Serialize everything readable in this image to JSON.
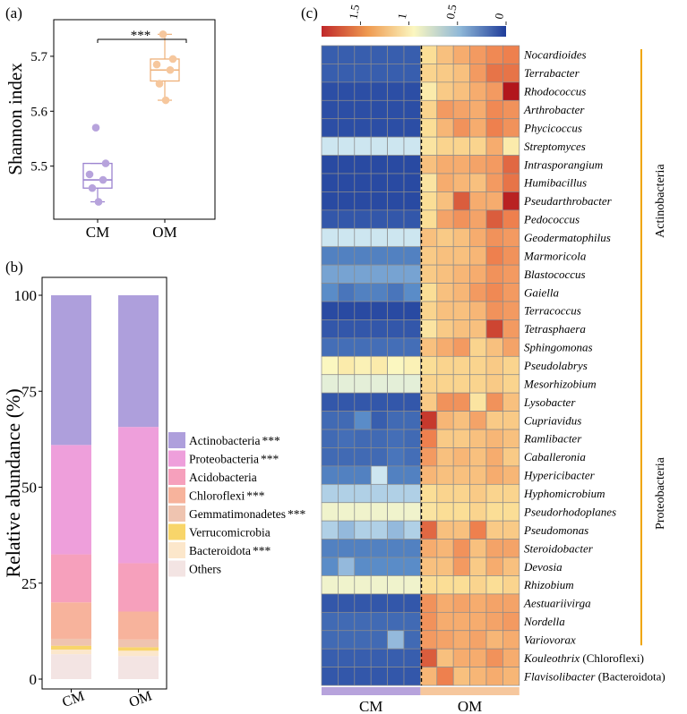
{
  "panel_labels": {
    "a": "(a)",
    "b": "(b)",
    "c": "(c)"
  },
  "colors": {
    "cm_fill": "#b7a3dc",
    "cm_edge": "#9b83cf",
    "om_fill": "#f6c79d",
    "om_edge": "#eeb079",
    "annot_line": "#f0a500",
    "heat_low": "#c0282a",
    "heat_mid": "#fbf7c0",
    "heat_high": "#1f3c9a"
  },
  "chart_data": [
    {
      "id": "a",
      "type": "box",
      "ylabel": "Shannon index",
      "categories": [
        "CM",
        "OM"
      ],
      "yticks": [
        5.5,
        5.6,
        5.7
      ],
      "ylim": [
        5.405,
        5.765
      ],
      "groups": [
        {
          "name": "CM",
          "q1": 5.46,
          "median": 5.475,
          "q3": 5.505,
          "whisker_low": 5.435,
          "whisker_high": 5.505,
          "points": [
            5.57,
            5.505,
            5.485,
            5.475,
            5.46,
            5.435
          ]
        },
        {
          "name": "OM",
          "q1": 5.655,
          "median": 5.675,
          "q3": 5.695,
          "whisker_low": 5.62,
          "whisker_high": 5.74,
          "points": [
            5.74,
            5.695,
            5.685,
            5.675,
            5.65,
            5.62
          ]
        }
      ],
      "significance": "***"
    },
    {
      "id": "b",
      "type": "stacked_bar",
      "ylabel": "Relative abundance (%)",
      "categories": [
        "CM",
        "OM"
      ],
      "yticks": [
        0,
        25,
        50,
        75,
        100
      ],
      "ylim": [
        0,
        100
      ],
      "series": [
        {
          "name": "Others",
          "sig": "",
          "color": "#f3e4e3",
          "values": [
            6.5,
            6.0
          ]
        },
        {
          "name": "Bacteroidota",
          "sig": "***",
          "color": "#fce7cb",
          "values": [
            1.2,
            1.4
          ]
        },
        {
          "name": "Verrucomicrobia",
          "sig": "",
          "color": "#f8d56a",
          "values": [
            1.0,
            0.9
          ]
        },
        {
          "name": "Gemmatimonadetes",
          "sig": "***",
          "color": "#efc4b0",
          "values": [
            1.8,
            2.0
          ]
        },
        {
          "name": "Chloroflexi",
          "sig": "***",
          "color": "#f7b39c",
          "values": [
            9.5,
            7.3
          ]
        },
        {
          "name": "Acidobacteria",
          "sig": "",
          "color": "#f6a0bc",
          "values": [
            12.5,
            12.6
          ]
        },
        {
          "name": "Proteobacteria",
          "sig": "***",
          "color": "#ee9fdb",
          "values": [
            28.5,
            35.5
          ]
        },
        {
          "name": "Actinobacteria",
          "sig": "***",
          "color": "#ae9fdc",
          "values": [
            39.0,
            34.3
          ]
        }
      ]
    },
    {
      "id": "c",
      "type": "heatmap",
      "colorbar_ticks": [
        "1.5",
        "1",
        "0.5",
        "0"
      ],
      "colorbar_values": [
        1.5,
        1.0,
        0.5,
        0.0
      ],
      "value_range": [
        0,
        1.9
      ],
      "groups": [
        "CM",
        "OM"
      ],
      "rows": [
        {
          "genus": "Nocardioides",
          "suffix": "",
          "values": [
            0.15,
            0.15,
            0.15,
            0.15,
            0.15,
            0.15,
            0.95,
            1.1,
            1.2,
            1.3,
            1.4,
            1.45
          ]
        },
        {
          "genus": "Terrabacter",
          "suffix": "",
          "values": [
            0.15,
            0.15,
            0.15,
            0.15,
            0.15,
            0.15,
            1.0,
            1.05,
            1.1,
            1.3,
            1.5,
            1.5
          ]
        },
        {
          "genus": "Rhodococcus",
          "suffix": "",
          "values": [
            0.08,
            0.08,
            0.08,
            0.08,
            0.08,
            0.08,
            0.85,
            1.05,
            1.1,
            1.2,
            1.3,
            1.9
          ]
        },
        {
          "genus": "Arthrobacter",
          "suffix": "",
          "values": [
            0.08,
            0.08,
            0.08,
            0.08,
            0.08,
            0.08,
            1.0,
            1.3,
            1.25,
            1.2,
            1.4,
            1.35
          ]
        },
        {
          "genus": "Phycicoccus",
          "suffix": "",
          "values": [
            0.08,
            0.08,
            0.08,
            0.08,
            0.08,
            0.08,
            0.95,
            1.15,
            1.35,
            1.2,
            1.45,
            1.35
          ]
        },
        {
          "genus": "Streptomyces",
          "suffix": "",
          "values": [
            0.55,
            0.55,
            0.55,
            0.55,
            0.55,
            0.55,
            0.9,
            1.0,
            1.0,
            1.0,
            1.2,
            0.85
          ]
        },
        {
          "genus": "Intrasporangium",
          "suffix": "",
          "values": [
            0.06,
            0.06,
            0.06,
            0.06,
            0.06,
            0.06,
            1.1,
            1.2,
            1.2,
            1.25,
            1.3,
            1.55
          ]
        },
        {
          "genus": "Humibacillus",
          "suffix": "",
          "values": [
            0.06,
            0.06,
            0.06,
            0.06,
            0.06,
            0.06,
            0.9,
            1.2,
            1.15,
            1.1,
            1.3,
            1.5
          ]
        },
        {
          "genus": "Pseudarthrobacter",
          "suffix": "",
          "values": [
            0.06,
            0.06,
            0.06,
            0.06,
            0.06,
            0.06,
            0.95,
            1.1,
            1.6,
            1.2,
            1.2,
            1.85
          ]
        },
        {
          "genus": "Pedococcus",
          "suffix": "",
          "values": [
            0.12,
            0.12,
            0.12,
            0.12,
            0.12,
            0.12,
            0.95,
            1.25,
            1.35,
            1.25,
            1.6,
            1.45
          ]
        },
        {
          "genus": "Geodermatophilus",
          "suffix": "",
          "values": [
            0.55,
            0.55,
            0.55,
            0.55,
            0.55,
            0.55,
            1.1,
            1.05,
            1.1,
            1.2,
            1.35,
            1.3
          ]
        },
        {
          "genus": "Marmoricola",
          "suffix": "",
          "values": [
            0.3,
            0.3,
            0.3,
            0.3,
            0.3,
            0.3,
            1.05,
            1.1,
            1.1,
            1.15,
            1.45,
            1.35
          ]
        },
        {
          "genus": "Blastococcus",
          "suffix": "",
          "values": [
            0.4,
            0.4,
            0.4,
            0.4,
            0.4,
            0.4,
            1.05,
            1.1,
            1.15,
            1.2,
            1.35,
            1.3
          ]
        },
        {
          "genus": "Gaiella",
          "suffix": "",
          "values": [
            0.35,
            0.25,
            0.3,
            0.3,
            0.25,
            0.35,
            0.95,
            1.1,
            1.15,
            1.3,
            1.4,
            1.3
          ]
        },
        {
          "genus": "Terracoccus",
          "suffix": "",
          "values": [
            0.06,
            0.06,
            0.06,
            0.06,
            0.06,
            0.06,
            1.0,
            1.1,
            1.1,
            1.15,
            1.35,
            1.3
          ]
        },
        {
          "genus": "Tetrasphaera",
          "suffix": "",
          "values": [
            0.12,
            0.12,
            0.12,
            0.12,
            0.12,
            0.12,
            0.9,
            1.05,
            1.1,
            1.1,
            1.7,
            1.3
          ]
        },
        {
          "genus": "Sphingomonas",
          "suffix": "",
          "values": [
            0.22,
            0.22,
            0.22,
            0.22,
            0.22,
            0.22,
            1.1,
            1.2,
            1.3,
            1.0,
            1.1,
            1.25
          ]
        },
        {
          "genus": "Pseudolabrys",
          "suffix": "",
          "values": [
            0.75,
            0.85,
            0.8,
            0.85,
            0.75,
            0.8,
            0.95,
            1.0,
            1.0,
            1.0,
            1.05,
            1.0
          ]
        },
        {
          "genus": "Mesorhizobium",
          "suffix": "",
          "values": [
            0.65,
            0.65,
            0.65,
            0.65,
            0.65,
            0.65,
            1.0,
            1.0,
            1.0,
            1.0,
            1.05,
            1.0
          ]
        },
        {
          "genus": "Lysobacter",
          "suffix": "",
          "values": [
            0.12,
            0.12,
            0.12,
            0.12,
            0.12,
            0.12,
            1.05,
            1.35,
            1.35,
            0.9,
            1.35,
            1.1
          ]
        },
        {
          "genus": "Cupriavidus",
          "suffix": "",
          "values": [
            0.2,
            0.2,
            0.35,
            0.15,
            0.2,
            0.2,
            1.75,
            1.15,
            1.1,
            1.25,
            1.05,
            1.05
          ]
        },
        {
          "genus": "Ramlibacter",
          "suffix": "",
          "values": [
            0.2,
            0.22,
            0.2,
            0.2,
            0.22,
            0.2,
            1.45,
            1.05,
            1.05,
            1.1,
            1.15,
            1.1
          ]
        },
        {
          "genus": "Caballeronia",
          "suffix": "",
          "values": [
            0.2,
            0.2,
            0.2,
            0.2,
            0.25,
            0.22,
            1.3,
            1.1,
            1.15,
            1.1,
            1.2,
            1.05
          ]
        },
        {
          "genus": "Hypericibacter",
          "suffix": "",
          "values": [
            0.3,
            0.3,
            0.3,
            0.55,
            0.3,
            0.3,
            1.15,
            1.1,
            1.1,
            1.1,
            1.2,
            1.15
          ]
        },
        {
          "genus": "Hyphomicrobium",
          "suffix": "",
          "values": [
            0.5,
            0.5,
            0.5,
            0.5,
            0.5,
            0.5,
            0.95,
            1.0,
            1.0,
            1.05,
            1.0,
            1.0
          ]
        },
        {
          "genus": "Pseudorhodoplanes",
          "suffix": "",
          "values": [
            0.7,
            0.7,
            0.7,
            0.7,
            0.7,
            0.7,
            0.9,
            0.95,
            0.95,
            1.0,
            0.95,
            0.95
          ]
        },
        {
          "genus": "Pseudomonas",
          "suffix": "",
          "values": [
            0.5,
            0.45,
            0.5,
            0.5,
            0.45,
            0.5,
            1.55,
            1.1,
            1.1,
            1.45,
            1.05,
            1.05
          ]
        },
        {
          "genus": "Steroidobacter",
          "suffix": "",
          "values": [
            0.3,
            0.3,
            0.3,
            0.3,
            0.3,
            0.3,
            1.2,
            1.15,
            1.35,
            1.1,
            1.25,
            1.25
          ]
        },
        {
          "genus": "Devosia",
          "suffix": "",
          "values": [
            0.35,
            0.45,
            0.35,
            0.35,
            0.35,
            0.35,
            1.1,
            1.1,
            1.3,
            1.05,
            1.2,
            1.1
          ]
        },
        {
          "genus": "Rhizobium",
          "suffix": "",
          "values": [
            0.7,
            0.7,
            0.7,
            0.7,
            0.7,
            0.7,
            0.95,
            0.95,
            0.95,
            1.0,
            0.95,
            1.0
          ]
        },
        {
          "genus": "Aestuariivirga",
          "suffix": "",
          "values": [
            0.12,
            0.12,
            0.12,
            0.12,
            0.12,
            0.12,
            1.35,
            1.2,
            1.25,
            1.2,
            1.25,
            1.25
          ]
        },
        {
          "genus": "Nordella",
          "suffix": "",
          "values": [
            0.2,
            0.2,
            0.2,
            0.2,
            0.2,
            0.2,
            1.35,
            1.2,
            1.2,
            1.2,
            1.25,
            1.3
          ]
        },
        {
          "genus": "Variovorax",
          "suffix": "",
          "values": [
            0.2,
            0.2,
            0.2,
            0.2,
            0.45,
            0.2,
            1.3,
            1.25,
            1.2,
            1.25,
            1.15,
            1.2
          ]
        },
        {
          "genus": "Kouleothrix",
          "suffix": " (Chloroflexi)",
          "values": [
            0.15,
            0.15,
            0.15,
            0.15,
            0.15,
            0.15,
            1.6,
            1.1,
            1.2,
            1.2,
            1.35,
            1.2
          ]
        },
        {
          "genus": "Flavisolibacter",
          "suffix": " (Bacteroidota)",
          "values": [
            0.12,
            0.12,
            0.12,
            0.12,
            0.12,
            0.12,
            1.15,
            1.45,
            1.1,
            1.15,
            1.2,
            1.15
          ]
        }
      ],
      "row_annotations": [
        {
          "label": "Actinobacteria",
          "first_row": 0,
          "last_row": 16
        },
        {
          "label": "Proteobacteria",
          "first_row": 16,
          "last_row": 32
        }
      ]
    }
  ]
}
